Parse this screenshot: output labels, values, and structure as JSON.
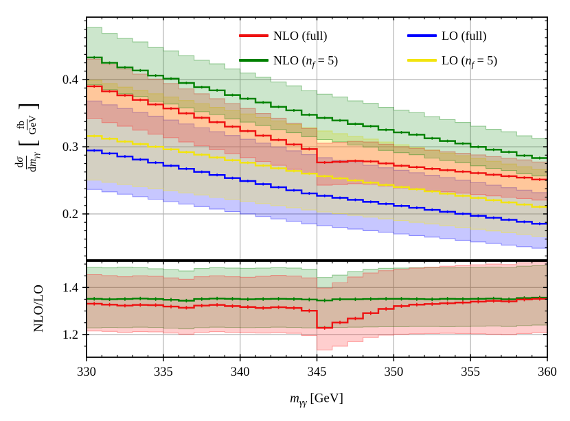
{
  "figure": {
    "background": "#ffffff"
  },
  "legend": {
    "items": [
      {
        "id": "nlo-full",
        "color": "#ee1111",
        "segments": [
          {
            "t": "NLO (full)"
          }
        ]
      },
      {
        "id": "nlo-nf5",
        "color": "#008000",
        "segments": [
          {
            "t": "NLO ("
          },
          {
            "t": "n",
            "style": "italic"
          },
          {
            "t": "f",
            "style": "italic-sub"
          },
          {
            "t": " = 5)"
          }
        ]
      },
      {
        "id": "lo-full",
        "color": "#0000ff",
        "segments": [
          {
            "t": "LO (full)"
          }
        ]
      },
      {
        "id": "lo-nf5",
        "color": "#f2e40e",
        "segments": [
          {
            "t": "LO ("
          },
          {
            "t": "n",
            "style": "italic"
          },
          {
            "t": "f",
            "style": "italic-sub"
          },
          {
            "t": " = 5)"
          }
        ]
      }
    ]
  },
  "axes": {
    "x": {
      "label_segments": [
        {
          "t": "m",
          "style": "italic"
        },
        {
          "t": "γγ",
          "style": "italic-sub"
        },
        {
          "t": " [GeV]"
        }
      ],
      "min": 330,
      "max": 360,
      "tick_labels": [
        "330",
        "335",
        "340",
        "345",
        "350",
        "355",
        "360"
      ],
      "tick_values": [
        330,
        335,
        340,
        345,
        350,
        355,
        360
      ],
      "minor_step": 1,
      "grid_values": [
        335,
        340,
        345,
        350,
        355
      ]
    },
    "y_main": {
      "label": {
        "numerator": [
          {
            "t": "d"
          },
          {
            "t": "σ",
            "style": "italic"
          }
        ],
        "denominator": [
          {
            "t": "d"
          },
          {
            "t": "m",
            "style": "italic"
          },
          {
            "t": "γγ",
            "style": "italic-sub"
          }
        ],
        "bracket_left": "[",
        "bracket_right": "]",
        "unit_numerator": "fb",
        "unit_denominator": "GeV"
      },
      "min": 0.1316,
      "max": 0.493,
      "tick_labels": [
        "0.2",
        "0.3",
        "0.4"
      ],
      "tick_values": [
        0.2,
        0.3,
        0.4
      ],
      "minor_step": 0.0125,
      "grid_values": [
        0.2,
        0.3,
        0.4
      ]
    },
    "y_ratio": {
      "label": "NLO/LO",
      "min": 1.103,
      "max": 1.512,
      "tick_labels": [
        "1.2",
        "1.4"
      ],
      "tick_values": [
        1.2,
        1.4
      ],
      "minor_step": 0.05,
      "grid_values": [
        1.2,
        1.4
      ]
    },
    "grid_color": "#b3b3b3"
  },
  "chart_data": {
    "type": "line",
    "title": "",
    "xlabel": "m_gammagamma [GeV]",
    "x_bin_start": 330,
    "bin_width": 1,
    "n_bins": 30,
    "main_panel": {
      "ylabel": "dsigma/dm_gammagamma [fb/GeV]",
      "ylim": [
        0.1316,
        0.493
      ],
      "series": [
        {
          "name": "LO (full)",
          "color": "#0000ff",
          "band_alpha": 0.22,
          "band_top_factor": 1.25,
          "band_bottom_factor": 0.803,
          "values": [
            0.2945,
            0.29,
            0.2856,
            0.281,
            0.2764,
            0.2718,
            0.2672,
            0.2626,
            0.258,
            0.2534,
            0.249,
            0.2444,
            0.2398,
            0.2352,
            0.2306,
            0.227,
            0.224,
            0.221,
            0.218,
            0.215,
            0.212,
            0.2091,
            0.2061,
            0.2032,
            0.2002,
            0.1972,
            0.1943,
            0.1913,
            0.1883,
            0.1854
          ]
        },
        {
          "name": "LO (nf = 5)",
          "color": "#ffee00",
          "line_color": "#f2e40e",
          "band_alpha": 0.24,
          "band_top_factor": 1.263,
          "band_bottom_factor": 0.792,
          "values": [
            0.316,
            0.312,
            0.3078,
            0.304,
            0.3,
            0.2962,
            0.292,
            0.2882,
            0.284,
            0.28,
            0.2762,
            0.272,
            0.268,
            0.264,
            0.26,
            0.2562,
            0.253,
            0.2498,
            0.2466,
            0.2432,
            0.24,
            0.2368,
            0.2336,
            0.2302,
            0.227,
            0.2238,
            0.2205,
            0.2172,
            0.214,
            0.2106
          ]
        },
        {
          "name": "NLO (full)",
          "color": "#ff2222",
          "line_color": "#ee1111",
          "band_alpha": 0.24,
          "band_top_factor": 1.104,
          "band_bottom_factor": 0.878,
          "values": [
            0.39,
            0.3826,
            0.3766,
            0.3698,
            0.363,
            0.357,
            0.3498,
            0.3432,
            0.3366,
            0.33,
            0.3234,
            0.3166,
            0.3102,
            0.3034,
            0.2966,
            0.2766,
            0.2776,
            0.279,
            0.2782,
            0.2752,
            0.2718,
            0.2696,
            0.2672,
            0.2652,
            0.263,
            0.2608,
            0.2584,
            0.2562,
            0.254,
            0.2512
          ]
        },
        {
          "name": "NLO (nf = 5)",
          "color": "#008000",
          "band_alpha": 0.2,
          "band_top_factor": 1.103,
          "band_bottom_factor": 0.906,
          "values": [
            0.433,
            0.425,
            0.4182,
            0.4136,
            0.406,
            0.4014,
            0.395,
            0.3888,
            0.384,
            0.377,
            0.3716,
            0.366,
            0.3594,
            0.3542,
            0.3476,
            0.343,
            0.3392,
            0.334,
            0.3306,
            0.3252,
            0.3214,
            0.318,
            0.3126,
            0.3086,
            0.3048,
            0.2998,
            0.2956,
            0.2922,
            0.2868,
            0.2832
          ]
        }
      ]
    },
    "ratio_panel": {
      "ylabel": "NLO/LO",
      "ylim": [
        1.103,
        1.512
      ],
      "series": [
        {
          "name": "NLO/LO (nf = 5)",
          "color": "#008000",
          "band_alpha": 0.2,
          "values": [
            1.352,
            1.35,
            1.351,
            1.353,
            1.351,
            1.348,
            1.344,
            1.351,
            1.353,
            1.352,
            1.35,
            1.351,
            1.352,
            1.351,
            1.349,
            1.345,
            1.35,
            1.35,
            1.351,
            1.352,
            1.352,
            1.351,
            1.35,
            1.352,
            1.351,
            1.352,
            1.353,
            1.35,
            1.355,
            1.357
          ],
          "band_top": [
            1.486,
            1.484,
            1.487,
            1.485,
            1.48,
            1.476,
            1.471,
            1.481,
            1.485,
            1.483,
            1.482,
            1.483,
            1.485,
            1.483,
            1.478,
            1.443,
            1.453,
            1.468,
            1.478,
            1.482,
            1.483,
            1.484,
            1.485,
            1.484,
            1.485,
            1.486,
            1.487,
            1.485,
            1.491,
            1.493
          ],
          "band_bottom": [
            1.228,
            1.23,
            1.229,
            1.231,
            1.23,
            1.227,
            1.224,
            1.229,
            1.231,
            1.23,
            1.229,
            1.23,
            1.231,
            1.23,
            1.228,
            1.232,
            1.23,
            1.231,
            1.232,
            1.233,
            1.233,
            1.234,
            1.234,
            1.233,
            1.234,
            1.235,
            1.236,
            1.234,
            1.238,
            1.24
          ]
        },
        {
          "name": "NLO/LO (full)",
          "color": "#ff2222",
          "line_color": "#ee1111",
          "band_alpha": 0.22,
          "values": [
            1.331,
            1.327,
            1.323,
            1.326,
            1.325,
            1.319,
            1.314,
            1.323,
            1.326,
            1.321,
            1.317,
            1.313,
            1.316,
            1.313,
            1.301,
            1.228,
            1.251,
            1.268,
            1.291,
            1.309,
            1.321,
            1.327,
            1.33,
            1.333,
            1.336,
            1.34,
            1.343,
            1.341,
            1.349,
            1.352
          ],
          "band_top": [
            1.455,
            1.451,
            1.446,
            1.45,
            1.448,
            1.441,
            1.435,
            1.446,
            1.45,
            1.446,
            1.444,
            1.448,
            1.452,
            1.449,
            1.441,
            1.398,
            1.42,
            1.445,
            1.462,
            1.472,
            1.478,
            1.483,
            1.487,
            1.491,
            1.494,
            1.497,
            1.5,
            1.498,
            1.506,
            1.51
          ],
          "band_bottom": [
            1.215,
            1.213,
            1.209,
            1.212,
            1.211,
            1.206,
            1.201,
            1.209,
            1.212,
            1.209,
            1.207,
            1.206,
            1.207,
            1.205,
            1.195,
            1.134,
            1.15,
            1.169,
            1.187,
            1.197,
            1.201,
            1.203,
            1.204,
            1.205,
            1.204,
            1.203,
            1.201,
            1.199,
            1.204,
            1.207
          ]
        }
      ]
    }
  }
}
